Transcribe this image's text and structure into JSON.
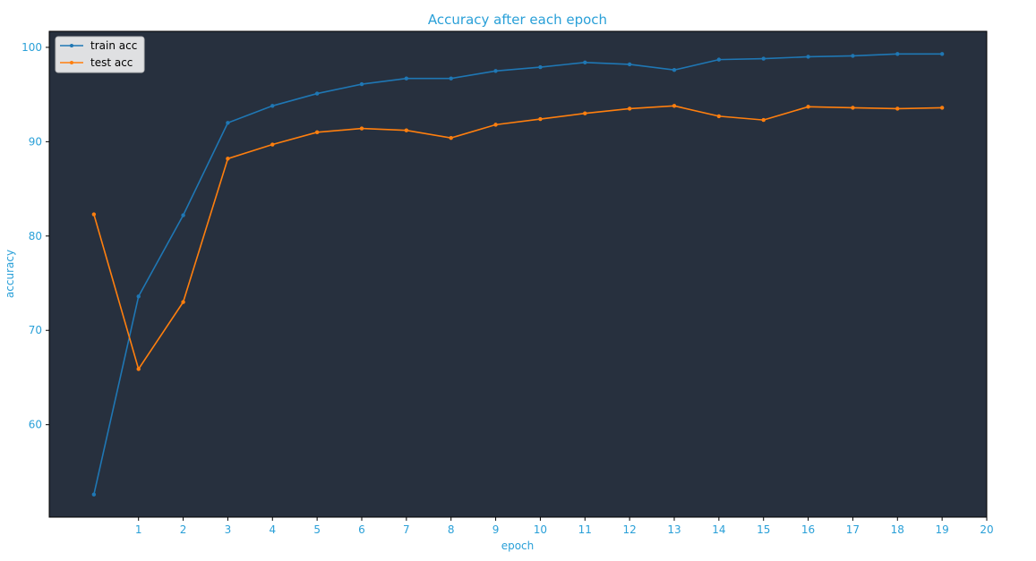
{
  "chart_data": {
    "type": "line",
    "title": "Accuracy after each epoch",
    "xlabel": "epoch",
    "ylabel": "accuracy",
    "xlim": [
      -1,
      20
    ],
    "ylim": [
      50.2,
      101.7
    ],
    "xticks": [
      1,
      2,
      3,
      4,
      5,
      6,
      7,
      8,
      9,
      10,
      11,
      12,
      13,
      14,
      15,
      16,
      17,
      18,
      19,
      20
    ],
    "yticks": [
      60,
      70,
      80,
      90,
      100
    ],
    "x": [
      0,
      1,
      2,
      3,
      4,
      5,
      6,
      7,
      8,
      9,
      10,
      11,
      12,
      13,
      14,
      15,
      16,
      17,
      18,
      19
    ],
    "series": [
      {
        "name": "train acc",
        "color": "#1f77b4",
        "values": [
          52.6,
          73.6,
          82.2,
          92.0,
          93.8,
          95.1,
          96.1,
          96.7,
          96.7,
          97.5,
          97.9,
          98.4,
          98.2,
          97.6,
          98.7,
          98.8,
          99.0,
          99.1,
          99.3,
          99.3
        ]
      },
      {
        "name": "test acc",
        "color": "#ff7f0e",
        "values": [
          82.3,
          65.9,
          73.0,
          88.2,
          89.7,
          91.0,
          91.4,
          91.2,
          90.4,
          91.8,
          92.4,
          93.0,
          93.5,
          93.8,
          92.7,
          92.3,
          93.7,
          93.6,
          93.5,
          93.6
        ]
      }
    ],
    "grid": false,
    "legend_position": "top-left",
    "colors": {
      "plot_background": "#27303e",
      "text": "#2aa0d8",
      "axis": "#000000"
    }
  }
}
